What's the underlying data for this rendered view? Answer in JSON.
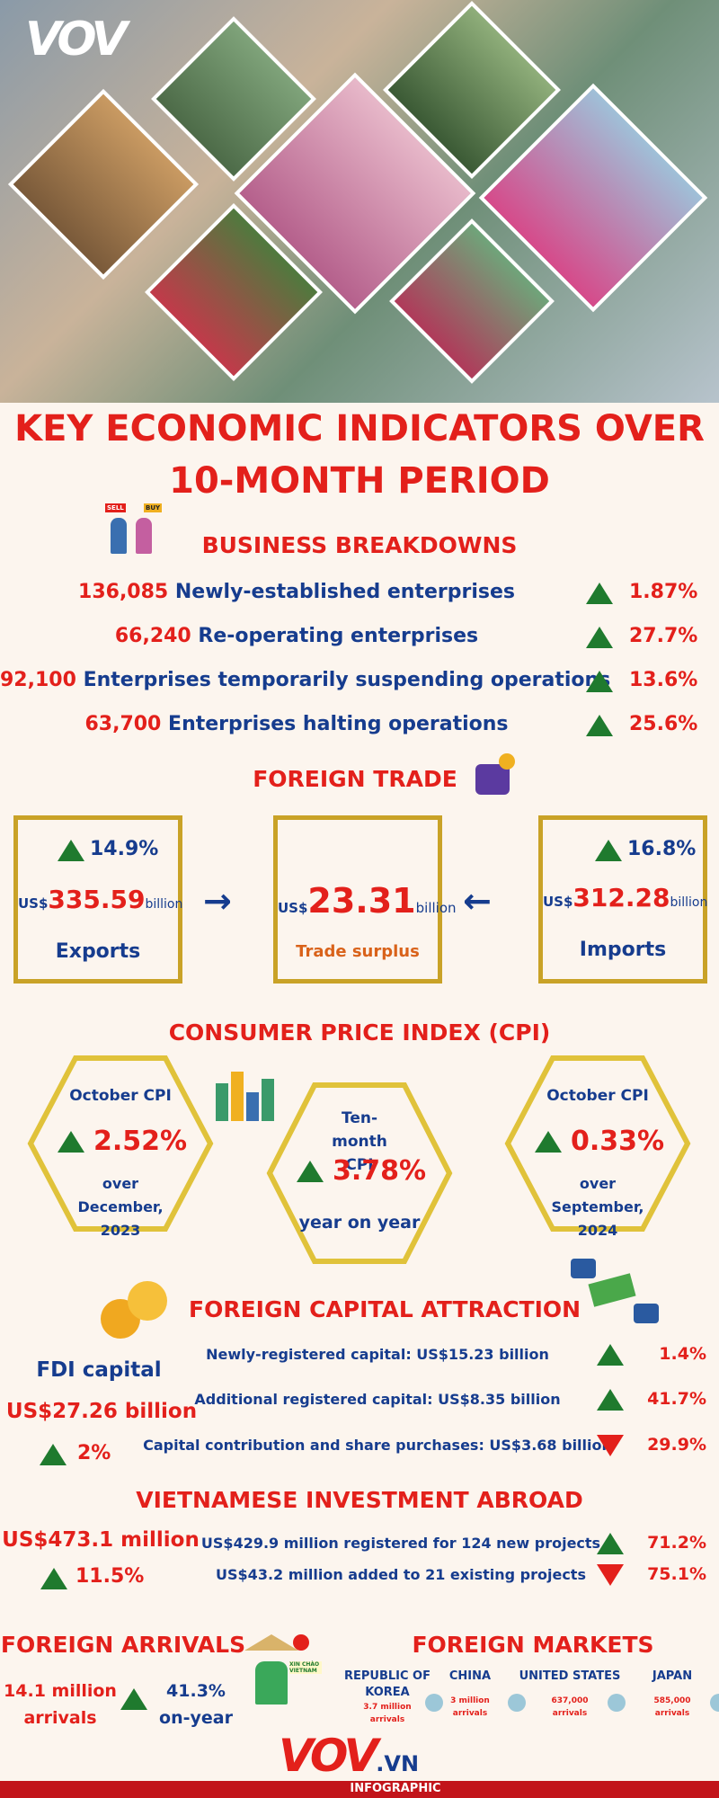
{
  "header": {
    "logo": "VOV"
  },
  "title": "KEY ECONOMIC INDICATORS OVER 10-MONTH PERIOD",
  "business": {
    "icon_labels": [
      "SELL",
      "BUY"
    ],
    "heading": "BUSINESS BREAKDOWNS",
    "items": [
      {
        "value": "136,085",
        "label": "Newly-established enterprises",
        "change": "1.87%"
      },
      {
        "value": "66,240",
        "label": "Re-operating enterprises",
        "change": "27.7%"
      },
      {
        "value": "92,100",
        "label": "Enterprises temporarily suspending operations",
        "change": "13.6%"
      },
      {
        "value": "63,700",
        "label": "Enterprises halting operations",
        "change": "25.6%"
      }
    ]
  },
  "trade": {
    "heading": "FOREIGN TRADE",
    "exports": {
      "change": "14.9%",
      "currency": "US$",
      "amount": "335.59",
      "unit": "billion",
      "label": "Exports"
    },
    "surplus": {
      "currency": "US$",
      "amount": "23.31",
      "unit": "billion",
      "label": "Trade surplus"
    },
    "imports": {
      "change": "16.8%",
      "currency": "US$",
      "amount": "312.28",
      "unit": "billion",
      "label": "Imports"
    }
  },
  "cpi": {
    "heading": "CONSUMER PRICE INDEX (CPI)",
    "items": [
      {
        "title": "October CPI",
        "value": "2.52%",
        "note": "over December, 2023"
      },
      {
        "title": "Ten-month CPI",
        "value": "3.78%",
        "note": "year on year"
      },
      {
        "title": "October CPI",
        "value": "0.33%",
        "note": "over September, 2024"
      }
    ]
  },
  "fdi": {
    "heading": "FOREIGN CAPITAL ATTRACTION",
    "label": "FDI capital",
    "total": "US$27.26 billion",
    "change": "2%",
    "items": [
      {
        "text": "Newly-registered capital: US$15.23 billion",
        "change": "1.4%",
        "trend": "up"
      },
      {
        "text": "Additional registered capital: US$8.35 billion",
        "change": "41.7%",
        "trend": "up"
      },
      {
        "text": "Capital contribution and share purchases: US$3.68 billion",
        "change": "29.9%",
        "trend": "down"
      }
    ]
  },
  "abroad": {
    "heading": "VIETNAMESE INVESTMENT ABROAD",
    "total": "US$473.1 million",
    "change": "11.5%",
    "items": [
      {
        "text": "US$429.9 million registered for 124 new projects",
        "change": "71.2%",
        "trend": "up"
      },
      {
        "text": "US$43.2 million added to 21 existing projects",
        "change": "75.1%",
        "trend": "down"
      }
    ]
  },
  "arrivals": {
    "heading": "FOREIGN ARRIVALS",
    "value": "14.1 million arrivals",
    "change": "41.3% on-year",
    "icon_label": "XIN CHÀO VIETNAM"
  },
  "markets": {
    "heading": "FOREIGN MARKETS",
    "items": [
      {
        "country": "REPUBLIC OF KOREA",
        "value": "3.7 million arrivals"
      },
      {
        "country": "CHINA",
        "value": "3 million arrivals"
      },
      {
        "country": "UNITED STATES",
        "value": "637,000 arrivals"
      },
      {
        "country": "JAPAN",
        "value": "585,000 arrivals"
      }
    ]
  },
  "footer": {
    "logo": "VOV",
    "suffix": ".VN",
    "label": "INFOGRAPHIC"
  }
}
